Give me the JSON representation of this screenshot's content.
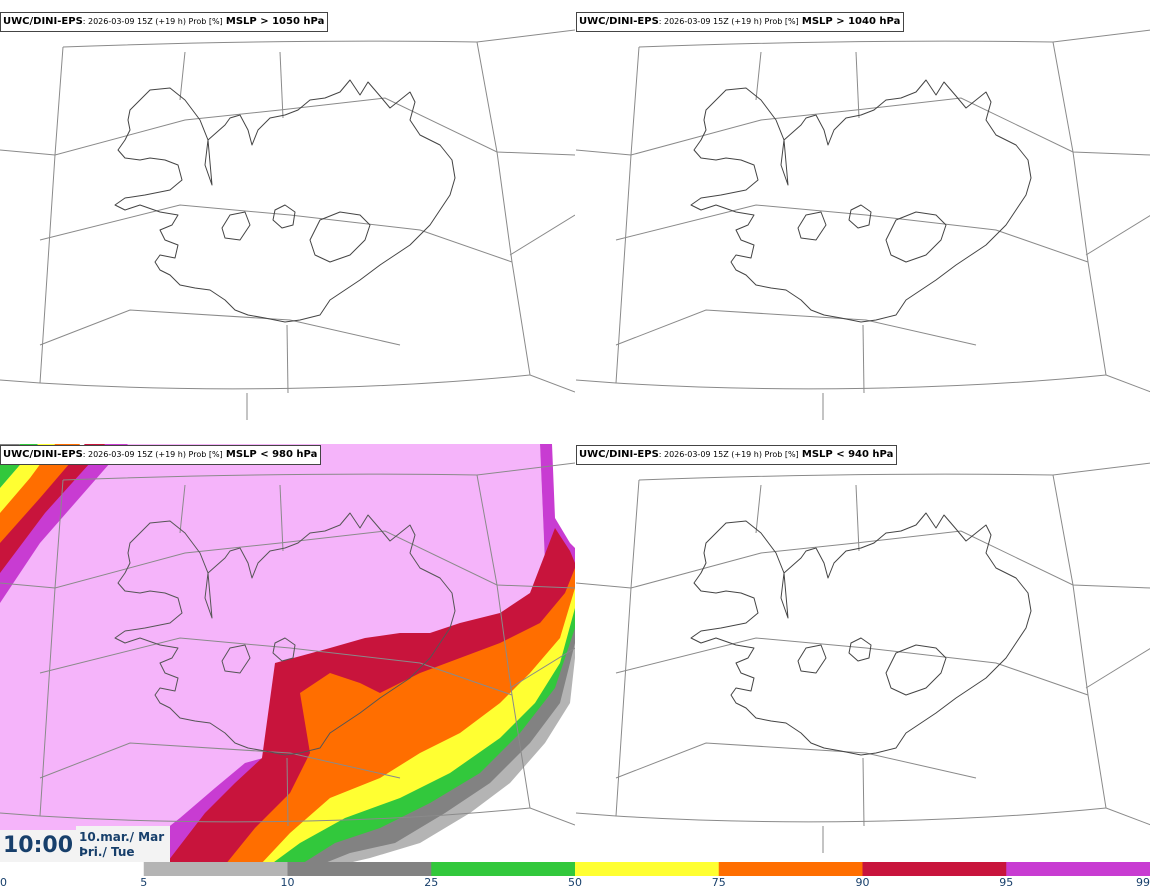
{
  "panels": [
    {
      "model": "UWC/DINI-EPS",
      "meta": ": 2026-03-09 15Z (+19 h) Prob [%]",
      "threshold": "MSLP > 1050 hPa"
    },
    {
      "model": "UWC/DINI-EPS",
      "meta": ": 2026-03-09 15Z (+19 h) Prob [%]",
      "threshold": "MSLP > 1040 hPa"
    },
    {
      "model": "UWC/DINI-EPS",
      "meta": ": 2026-03-09 15Z (+19 h) Prob [%]",
      "threshold": "MSLP < 980 hPa"
    },
    {
      "model": "UWC/DINI-EPS",
      "meta": ": 2026-03-09 15Z (+19 h) Prob [%]",
      "threshold": "MSLP < 940 hPa"
    }
  ],
  "valid_time": {
    "time": "10:00",
    "date_line1": "10.mar./ Mar",
    "date_line2": "Þri./ Tue"
  },
  "colorbar": {
    "ticks": [
      "0",
      "5",
      "10",
      "25",
      "50",
      "75",
      "90",
      "95",
      "99"
    ],
    "colors": [
      "#ffffff",
      "#b4b4b4",
      "#828282",
      "#32c83c",
      "#ffff32",
      "#ff6e00",
      "#c8143c",
      "#c83cd2",
      "#f5b4fa"
    ]
  }
}
